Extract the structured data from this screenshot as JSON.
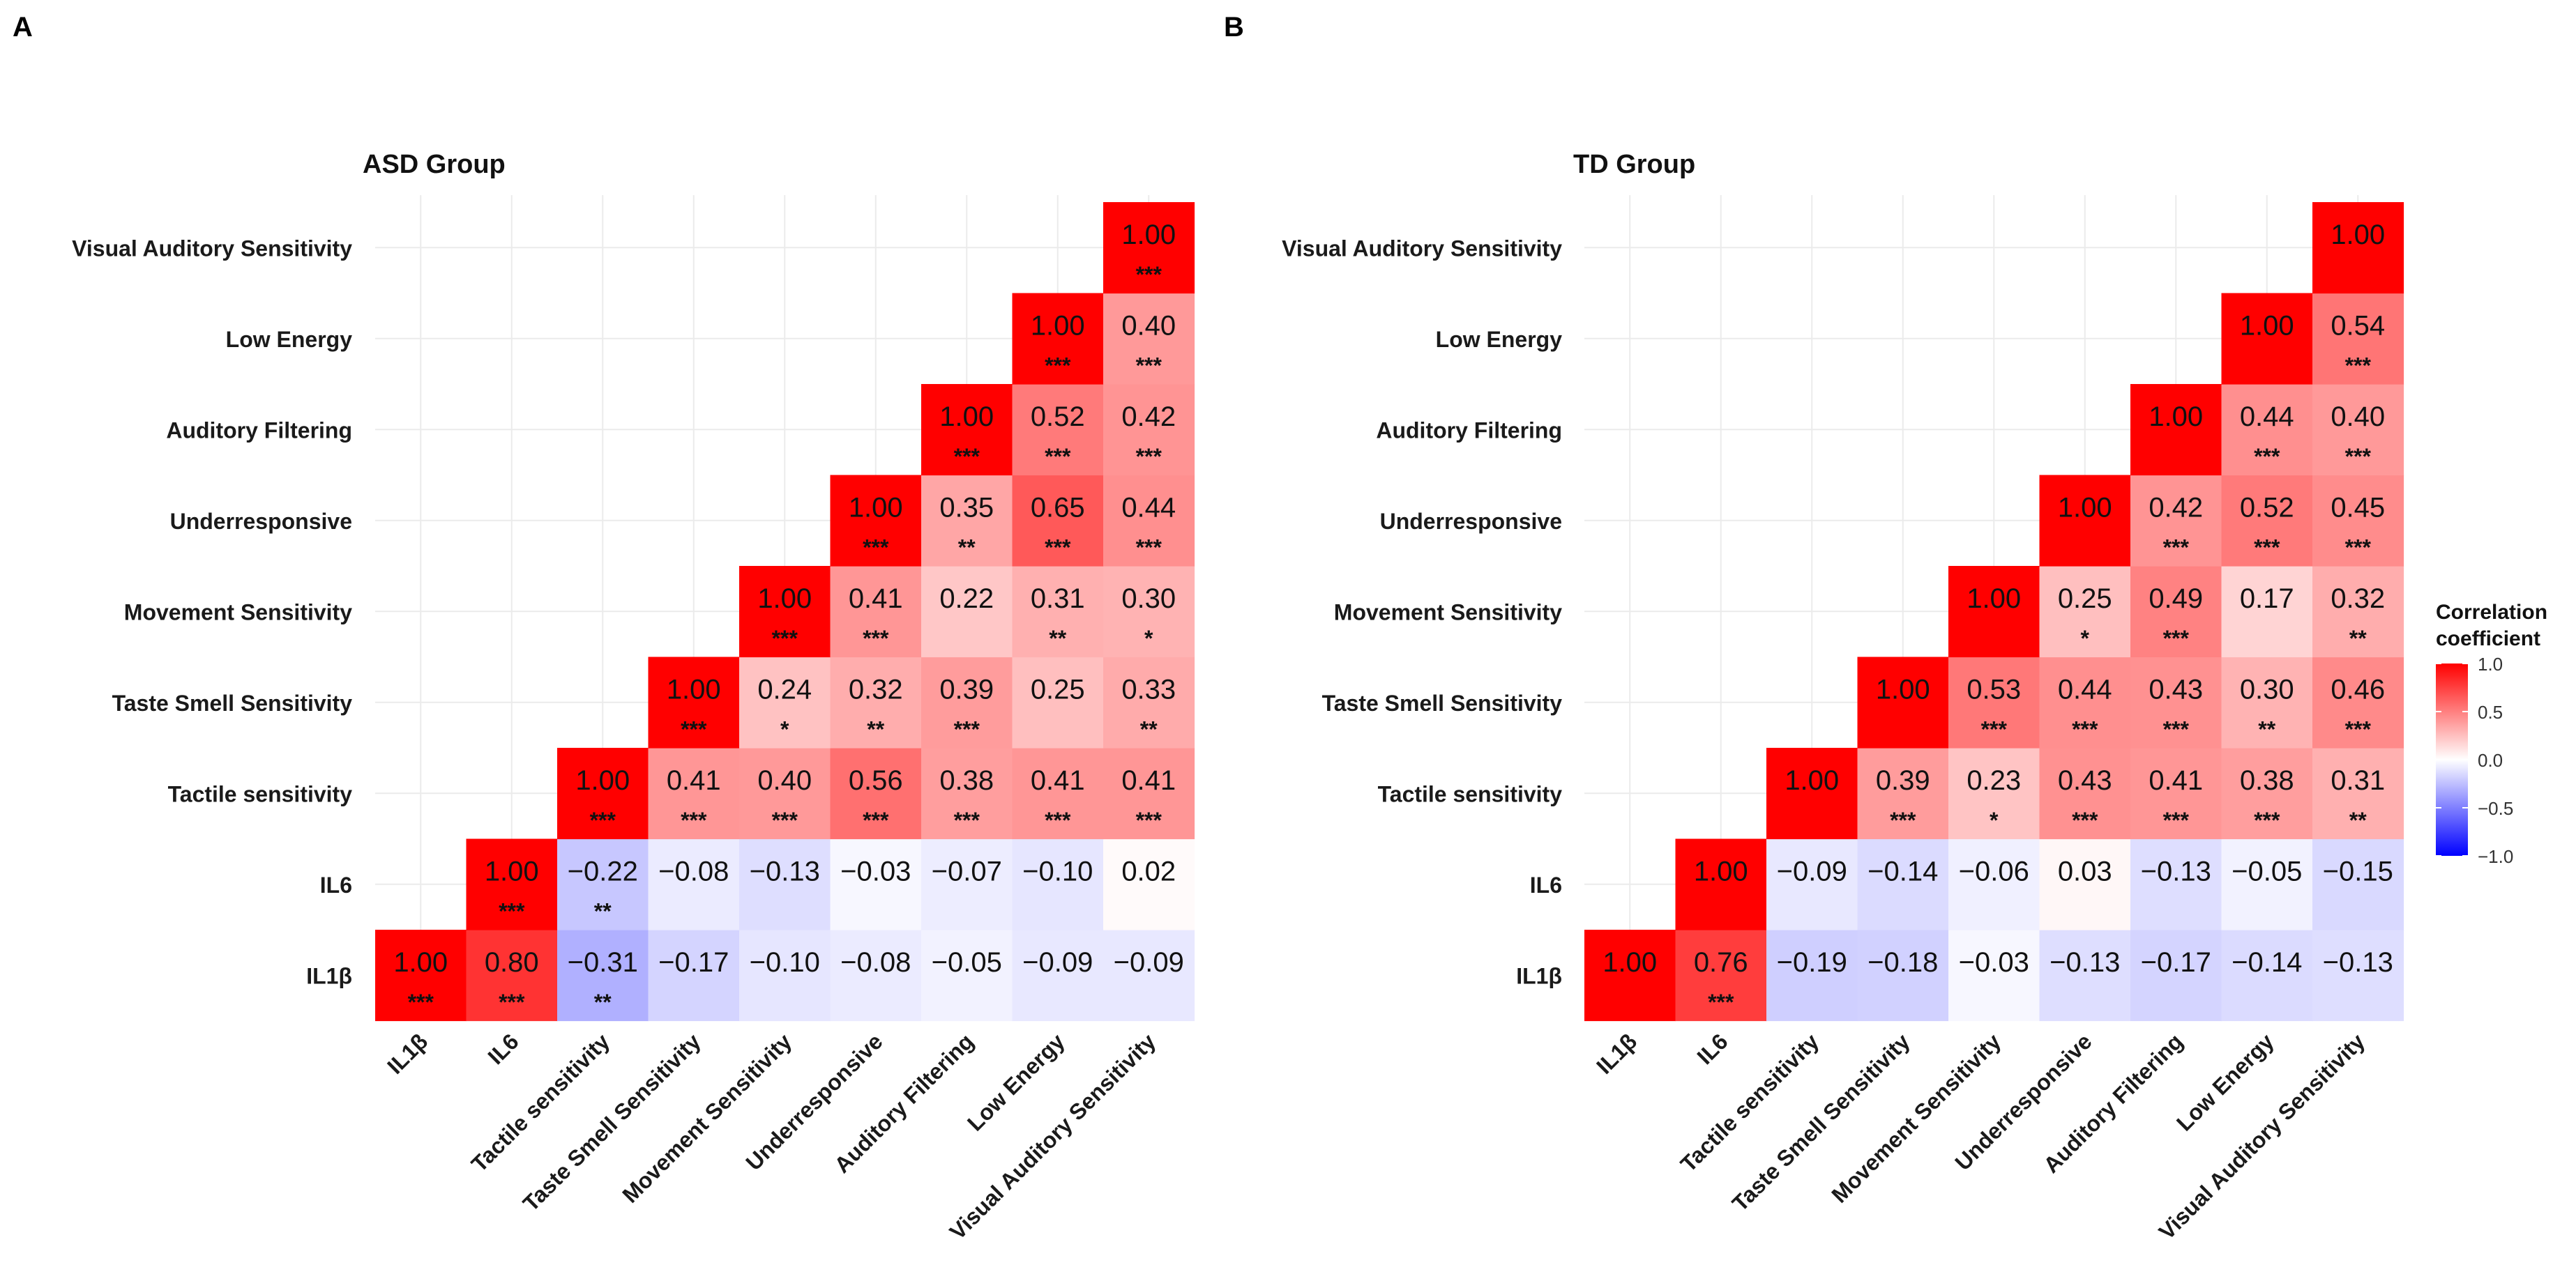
{
  "figure": {
    "panel_letters": [
      "A",
      "B"
    ]
  },
  "chart_data": [
    {
      "type": "heatmap",
      "title": "ASD Group",
      "x_labels": [
        "IL1β",
        "IL6",
        "Tactile sensitivity",
        "Taste Smell Sensitivity",
        "Movement Sensitivity",
        "Underresponsive",
        "Auditory Filtering",
        "Low Energy",
        "Visual Auditory Sensitivity"
      ],
      "y_labels": [
        "IL1β",
        "IL6",
        "Tactile sensitivity",
        "Taste Smell Sensitivity",
        "Movement Sensitivity",
        "Underresponsive",
        "Auditory Filtering",
        "Low Energy",
        "Visual Auditory Sensitivity"
      ],
      "values": [
        [
          1.0,
          0.8,
          -0.31,
          -0.17,
          -0.1,
          -0.08,
          -0.05,
          -0.09,
          -0.09
        ],
        [
          null,
          1.0,
          -0.22,
          -0.08,
          -0.13,
          -0.03,
          -0.07,
          -0.1,
          0.02
        ],
        [
          null,
          null,
          1.0,
          0.41,
          0.4,
          0.56,
          0.38,
          0.41,
          0.41
        ],
        [
          null,
          null,
          null,
          1.0,
          0.24,
          0.32,
          0.39,
          0.25,
          0.33
        ],
        [
          null,
          null,
          null,
          null,
          1.0,
          0.41,
          0.22,
          0.31,
          0.3
        ],
        [
          null,
          null,
          null,
          null,
          null,
          1.0,
          0.35,
          0.65,
          0.44
        ],
        [
          null,
          null,
          null,
          null,
          null,
          null,
          1.0,
          0.52,
          0.42
        ],
        [
          null,
          null,
          null,
          null,
          null,
          null,
          null,
          1.0,
          0.4
        ],
        [
          null,
          null,
          null,
          null,
          null,
          null,
          null,
          null,
          1.0
        ]
      ],
      "labels": [
        [
          "1.00",
          "0.80",
          "−0.31",
          "−0.17",
          "−0.10",
          "−0.08",
          "−0.05",
          "−0.09",
          "−0.09"
        ],
        [
          null,
          "1.00",
          "−0.22",
          "−0.08",
          "−0.13",
          "−0.03",
          "−0.07",
          "−0.10",
          "0.02"
        ],
        [
          null,
          null,
          "1.00",
          "0.41",
          "0.40",
          "0.56",
          "0.38",
          "0.41",
          "0.41"
        ],
        [
          null,
          null,
          null,
          "1.00",
          "0.24",
          "0.32",
          "0.39",
          "0.25",
          "0.33"
        ],
        [
          null,
          null,
          null,
          null,
          "1.00",
          "0.41",
          "0.22",
          "0.31",
          "0.30"
        ],
        [
          null,
          null,
          null,
          null,
          null,
          "1.00",
          "0.35",
          "0.65",
          "0.44"
        ],
        [
          null,
          null,
          null,
          null,
          null,
          null,
          "1.00",
          "0.52",
          "0.42"
        ],
        [
          null,
          null,
          null,
          null,
          null,
          null,
          null,
          "1.00",
          "0.40"
        ],
        [
          null,
          null,
          null,
          null,
          null,
          null,
          null,
          null,
          "1.00"
        ]
      ],
      "significance": [
        [
          "***",
          "***",
          "**",
          "",
          "",
          "",
          "",
          "",
          ""
        ],
        [
          null,
          "***",
          "**",
          "",
          "",
          "",
          "",
          "",
          ""
        ],
        [
          null,
          null,
          "***",
          "***",
          "***",
          "***",
          "***",
          "***",
          "***"
        ],
        [
          null,
          null,
          null,
          "***",
          "*",
          "**",
          "***",
          "",
          "**"
        ],
        [
          null,
          null,
          null,
          null,
          "***",
          "***",
          "",
          "**",
          "*"
        ],
        [
          null,
          null,
          null,
          null,
          null,
          "***",
          "**",
          "***",
          "***"
        ],
        [
          null,
          null,
          null,
          null,
          null,
          null,
          "***",
          "***",
          "***"
        ],
        [
          null,
          null,
          null,
          null,
          null,
          null,
          null,
          "***",
          "***"
        ],
        [
          null,
          null,
          null,
          null,
          null,
          null,
          null,
          null,
          "***"
        ]
      ]
    },
    {
      "type": "heatmap",
      "title": "TD Group",
      "x_labels": [
        "IL1β",
        "IL6",
        "Tactile sensitivity",
        "Taste Smell Sensitivity",
        "Movement Sensitivity",
        "Underresponsive",
        "Auditory Filtering",
        "Low Energy",
        "Visual Auditory Sensitivity"
      ],
      "y_labels": [
        "IL1β",
        "IL6",
        "Tactile sensitivity",
        "Taste Smell Sensitivity",
        "Movement Sensitivity",
        "Underresponsive",
        "Auditory Filtering",
        "Low Energy",
        "Visual Auditory Sensitivity"
      ],
      "values": [
        [
          1.0,
          0.76,
          -0.19,
          -0.18,
          -0.03,
          -0.13,
          -0.17,
          -0.14,
          -0.13
        ],
        [
          null,
          1.0,
          -0.09,
          -0.14,
          -0.06,
          0.03,
          -0.13,
          -0.05,
          -0.15
        ],
        [
          null,
          null,
          1.0,
          0.39,
          0.23,
          0.43,
          0.41,
          0.38,
          0.31
        ],
        [
          null,
          null,
          null,
          1.0,
          0.53,
          0.44,
          0.43,
          0.3,
          0.46
        ],
        [
          null,
          null,
          null,
          null,
          1.0,
          0.25,
          0.49,
          0.17,
          0.32
        ],
        [
          null,
          null,
          null,
          null,
          null,
          1.0,
          0.42,
          0.52,
          0.45
        ],
        [
          null,
          null,
          null,
          null,
          null,
          null,
          1.0,
          0.44,
          0.4
        ],
        [
          null,
          null,
          null,
          null,
          null,
          null,
          null,
          1.0,
          0.54
        ],
        [
          null,
          null,
          null,
          null,
          null,
          null,
          null,
          null,
          1.0
        ]
      ],
      "labels": [
        [
          "1.00",
          "0.76",
          "−0.19",
          "−0.18",
          "−0.03",
          "−0.13",
          "−0.17",
          "−0.14",
          "−0.13"
        ],
        [
          null,
          "1.00",
          "−0.09",
          "−0.14",
          "−0.06",
          "0.03",
          "−0.13",
          "−0.05",
          "−0.15"
        ],
        [
          null,
          null,
          "1.00",
          "0.39",
          "0.23",
          "0.43",
          "0.41",
          "0.38",
          "0.31"
        ],
        [
          null,
          null,
          null,
          "1.00",
          "0.53",
          "0.44",
          "0.43",
          "0.30",
          "0.46"
        ],
        [
          null,
          null,
          null,
          null,
          "1.00",
          "0.25",
          "0.49",
          "0.17",
          "0.32"
        ],
        [
          null,
          null,
          null,
          null,
          null,
          "1.00",
          "0.42",
          "0.52",
          "0.45"
        ],
        [
          null,
          null,
          null,
          null,
          null,
          null,
          "1.00",
          "0.44",
          "0.40"
        ],
        [
          null,
          null,
          null,
          null,
          null,
          null,
          null,
          "1.00",
          "0.54"
        ],
        [
          null,
          null,
          null,
          null,
          null,
          null,
          null,
          null,
          "1.00"
        ]
      ],
      "significance": [
        [
          "",
          "***",
          "",
          "",
          "",
          "",
          "",
          "",
          ""
        ],
        [
          null,
          "",
          "",
          "",
          "",
          "",
          "",
          "",
          ""
        ],
        [
          null,
          null,
          "",
          "***",
          "*",
          "***",
          "***",
          "***",
          "**"
        ],
        [
          null,
          null,
          null,
          "",
          "***",
          "***",
          "***",
          "**",
          "***"
        ],
        [
          null,
          null,
          null,
          null,
          "",
          "*",
          "***",
          "",
          "**"
        ],
        [
          null,
          null,
          null,
          null,
          null,
          "",
          "***",
          "***",
          "***"
        ],
        [
          null,
          null,
          null,
          null,
          null,
          null,
          "",
          "***",
          "***"
        ],
        [
          null,
          null,
          null,
          null,
          null,
          null,
          null,
          "",
          "***"
        ],
        [
          null,
          null,
          null,
          null,
          null,
          null,
          null,
          null,
          ""
        ]
      ]
    }
  ],
  "legend": {
    "title_line1": "Correlation",
    "title_line2": "coefficient",
    "ticks": [
      "1.0",
      "0.5",
      "0.0",
      "−0.5",
      "−1.0"
    ],
    "tick_values": [
      1.0,
      0.5,
      0.0,
      -0.5,
      -1.0
    ],
    "range": [
      -1.0,
      1.0
    ],
    "colors": {
      "low": "#0000ff",
      "mid": "#ffffff",
      "high": "#ff0000"
    }
  }
}
